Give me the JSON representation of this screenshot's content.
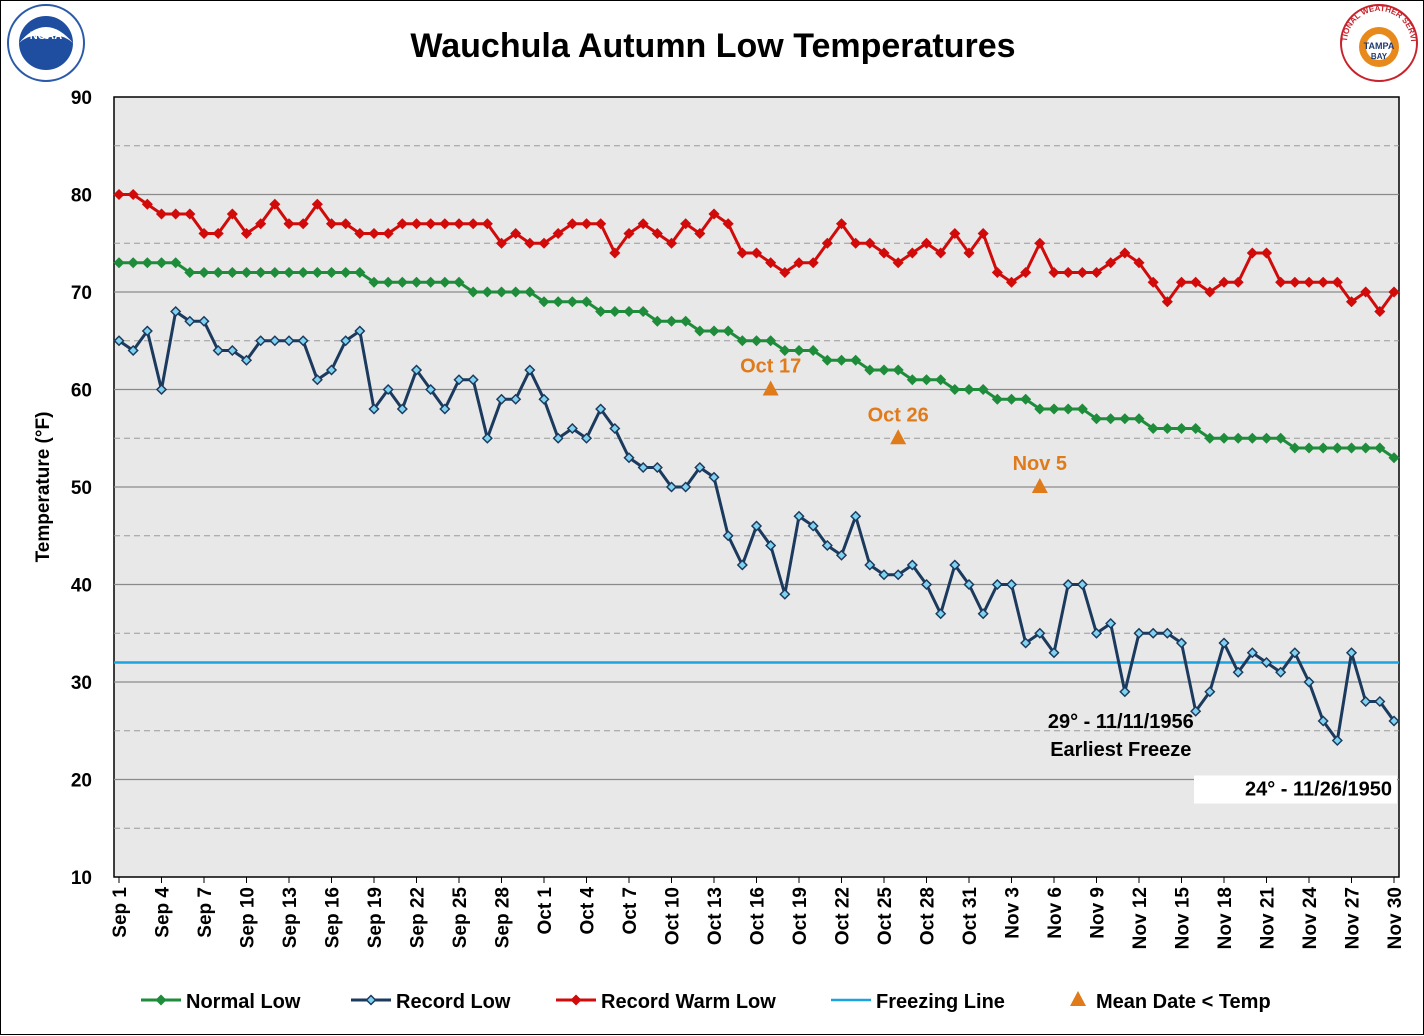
{
  "colors": {
    "normal": "#1E8C3A",
    "record_low": "#1B3A5E",
    "record_warm": "#D10A0A",
    "freezing": "#1AA3DF",
    "mean_marker": "#E07B1C",
    "plot_bg": "#E8E8E8"
  },
  "logos": {
    "left": "NOAA",
    "right_top": "NATIONAL WEATHER SERVICE",
    "right_mid": "TAMPA",
    "right_bottom": "BAY"
  },
  "chart_data": {
    "type": "line",
    "title": "Wauchula Autumn Low Temperatures",
    "xlabel": "",
    "ylabel": "Temperature (°F)",
    "ylim": [
      10,
      90
    ],
    "yticks": [
      10,
      20,
      30,
      40,
      50,
      60,
      70,
      80,
      90
    ],
    "minor_grid": [
      15,
      25,
      35,
      45,
      55,
      65,
      75,
      85
    ],
    "x_tick_labels": [
      "Sep 1",
      "Sep 4",
      "Sep 7",
      "Sep 10",
      "Sep 13",
      "Sep 16",
      "Sep 19",
      "Sep 22",
      "Sep 25",
      "Sep 28",
      "Oct 1",
      "Oct 4",
      "Oct 7",
      "Oct 10",
      "Oct 13",
      "Oct 16",
      "Oct 19",
      "Oct 22",
      "Oct 25",
      "Oct 28",
      "Oct 31",
      "Nov 3",
      "Nov 6",
      "Nov 9",
      "Nov 12",
      "Nov 15",
      "Nov 18",
      "Nov 21",
      "Nov 24",
      "Nov 27",
      "Nov 30"
    ],
    "x_tick_step": 3,
    "n_days": 91,
    "series": [
      {
        "name": "Normal Low",
        "color": "#1E8C3A",
        "values": [
          73,
          73,
          73,
          73,
          73,
          72,
          72,
          72,
          72,
          72,
          72,
          72,
          72,
          72,
          72,
          72,
          72,
          72,
          71,
          71,
          71,
          71,
          71,
          71,
          71,
          70,
          70,
          70,
          70,
          70,
          69,
          69,
          69,
          69,
          68,
          68,
          68,
          68,
          67,
          67,
          67,
          66,
          66,
          66,
          65,
          65,
          65,
          64,
          64,
          64,
          63,
          63,
          63,
          62,
          62,
          62,
          61,
          61,
          61,
          60,
          60,
          60,
          59,
          59,
          59,
          58,
          58,
          58,
          58,
          57,
          57,
          57,
          57,
          56,
          56,
          56,
          56,
          55,
          55,
          55,
          55,
          55,
          55,
          54,
          54,
          54,
          54,
          54,
          54,
          54,
          53
        ]
      },
      {
        "name": "Record Low",
        "color": "#1B3A5E",
        "values": [
          65,
          64,
          66,
          60,
          68,
          67,
          67,
          64,
          64,
          63,
          65,
          65,
          65,
          65,
          61,
          62,
          65,
          66,
          58,
          60,
          58,
          62,
          60,
          58,
          61,
          61,
          55,
          59,
          59,
          62,
          59,
          55,
          56,
          55,
          58,
          56,
          53,
          52,
          52,
          50,
          50,
          52,
          51,
          45,
          42,
          46,
          44,
          39,
          47,
          46,
          44,
          43,
          47,
          42,
          41,
          41,
          42,
          40,
          37,
          42,
          40,
          37,
          40,
          40,
          34,
          35,
          33,
          40,
          40,
          35,
          36,
          29,
          35,
          35,
          35,
          34,
          27,
          29,
          34,
          31,
          33,
          32,
          31,
          33,
          30,
          26,
          24,
          33,
          28,
          28,
          26
        ]
      },
      {
        "name": "Record Warm Low",
        "color": "#D10A0A",
        "values": [
          80,
          80,
          79,
          78,
          78,
          78,
          76,
          76,
          78,
          76,
          77,
          79,
          77,
          77,
          79,
          77,
          77,
          76,
          76,
          76,
          77,
          77,
          77,
          77,
          77,
          77,
          77,
          75,
          76,
          75,
          75,
          76,
          77,
          77,
          77,
          74,
          76,
          77,
          76,
          75,
          77,
          76,
          78,
          77,
          74,
          74,
          73,
          72,
          73,
          73,
          75,
          77,
          75,
          75,
          74,
          73,
          74,
          75,
          74,
          76,
          74,
          76,
          72,
          71,
          72,
          75,
          72,
          72,
          72,
          72,
          73,
          74,
          73,
          71,
          69,
          71,
          71,
          70,
          71,
          71,
          74,
          74,
          71,
          71,
          71,
          71,
          71,
          69,
          70,
          68,
          70
        ]
      }
    ],
    "freezing_line": {
      "name": "Freezing Line",
      "value": 32,
      "color": "#1AA3DF"
    },
    "mean_dates": {
      "name": "Mean Date < Temp",
      "color": "#E07B1C",
      "points": [
        {
          "label": "Oct 17",
          "day_index": 46,
          "value": 60
        },
        {
          "label": "Oct 26",
          "day_index": 55,
          "value": 55
        },
        {
          "label": "Nov 5",
          "day_index": 65,
          "value": 50
        }
      ]
    },
    "annotations": [
      {
        "id": "earliest-freeze-date",
        "text": "29° - 11/11/1956",
        "day_index": 71,
        "value": 29
      },
      {
        "id": "earliest-freeze-label",
        "text": "Earliest Freeze"
      },
      {
        "id": "lowest-record",
        "text": "24° - 11/26/1950",
        "day_index": 86,
        "value": 24
      }
    ],
    "legend": [
      "Normal Low",
      "Record Low",
      "Record Warm Low",
      "Freezing Line",
      "Mean Date < Temp"
    ],
    "legend_position": "bottom",
    "grid": true
  }
}
